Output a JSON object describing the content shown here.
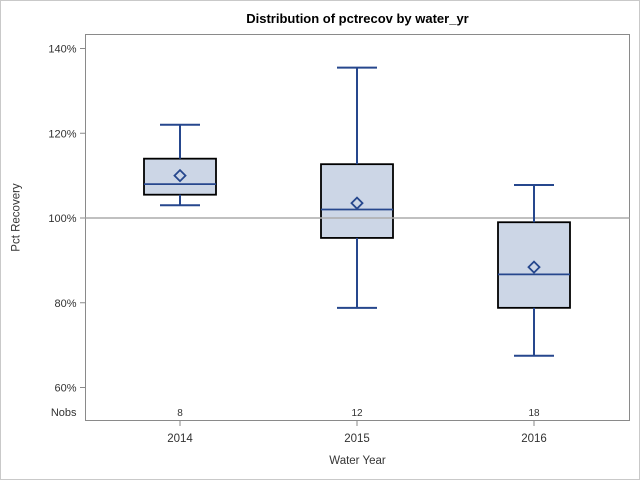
{
  "colors": {
    "box_fill": "#ccd6e6",
    "box_border": "#000000",
    "line_blue": "#26478d",
    "reference_line": "#ababab",
    "axis_frame": "#8a8a8a",
    "tick_text": "#323232",
    "title_text": "#000000"
  },
  "chart_data": {
    "type": "boxplot",
    "title": "Distribution of pctrecov by water_yr",
    "xlabel": "Water Year",
    "ylabel": "Pct Recovery",
    "y_axis": {
      "tick_labels": [
        "140%",
        "120%",
        "100%",
        "80%",
        "60%"
      ],
      "tick_values": [
        140,
        120,
        100,
        80,
        60
      ],
      "unit": "percent",
      "grid": "off"
    },
    "reference_line_y": 100,
    "legend": "none",
    "nobs_row_label": "Nobs",
    "categories": [
      "2014",
      "2015",
      "2016"
    ],
    "series": [
      {
        "category": "2014",
        "nobs": 8,
        "whisker_low": 103,
        "q1": 105.5,
        "median": 108,
        "mean": 110,
        "q3": 114,
        "whisker_high": 122
      },
      {
        "category": "2015",
        "nobs": 12,
        "whisker_low": 78.8,
        "q1": 95.3,
        "median": 102,
        "mean": 103.5,
        "q3": 112.7,
        "whisker_high": 135.5
      },
      {
        "category": "2016",
        "nobs": 18,
        "whisker_low": 67.5,
        "q1": 78.8,
        "median": 86.7,
        "mean": 88.4,
        "q3": 99,
        "whisker_high": 107.8
      }
    ]
  }
}
